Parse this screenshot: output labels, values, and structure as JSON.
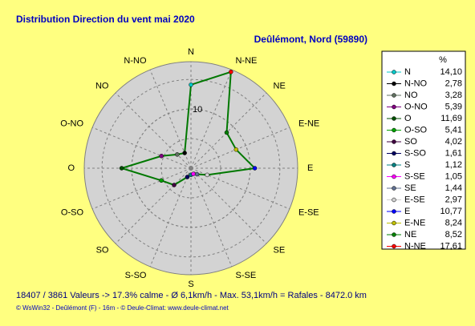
{
  "chart_data": {
    "type": "radar",
    "title": "Distribution Direction du vent   mai 2020",
    "subtitle": "Deûlémont, Nord (59890)",
    "legend_title": "%",
    "footer": "18407 / 3861 Valeurs  -> 17.3% calme   -   Ø 6,1km/h  -  Max. 53,1km/h = Rafales   -   8472.0 km",
    "credits": "© WsWin32  -  Deûlémont (F) - 16m  -  © Deule-Climat: www.deule-climat.net",
    "direction": "counterclockwise",
    "categories": [
      "N",
      "N-NO",
      "NO",
      "O-NO",
      "O",
      "O-SO",
      "SO",
      "S-SO",
      "S",
      "S-SE",
      "SE",
      "E-SE",
      "E",
      "E-NE",
      "NE",
      "N-NE"
    ],
    "series": [
      {
        "color": "#007800",
        "values": [
          14.1,
          2.78,
          3.28,
          5.39,
          11.69,
          5.41,
          4.02,
          1.61,
          1.12,
          1.05,
          1.44,
          2.97,
          10.77,
          8.24,
          8.52,
          17.61
        ],
        "value_labels": [
          "14,10",
          "2,78",
          "3,28",
          "5,39",
          "11,69",
          "5,41",
          "4,02",
          "1,61",
          "1,12",
          "1,05",
          "1,44",
          "2,97",
          "10,77",
          "8,24",
          "8,52",
          "17,61"
        ],
        "marker_colors": [
          "#00c8c8",
          "#000000",
          "#607060",
          "#800080",
          "#005000",
          "#00a000",
          "#400040",
          "#000060",
          "#008080",
          "#ff00ff",
          "#607090",
          "#d0d0d0",
          "#0000ff",
          "#c0c000",
          "#008000",
          "#ff0000"
        ]
      }
    ],
    "rlim": [
      0,
      18
    ],
    "rticks": [
      10
    ]
  }
}
